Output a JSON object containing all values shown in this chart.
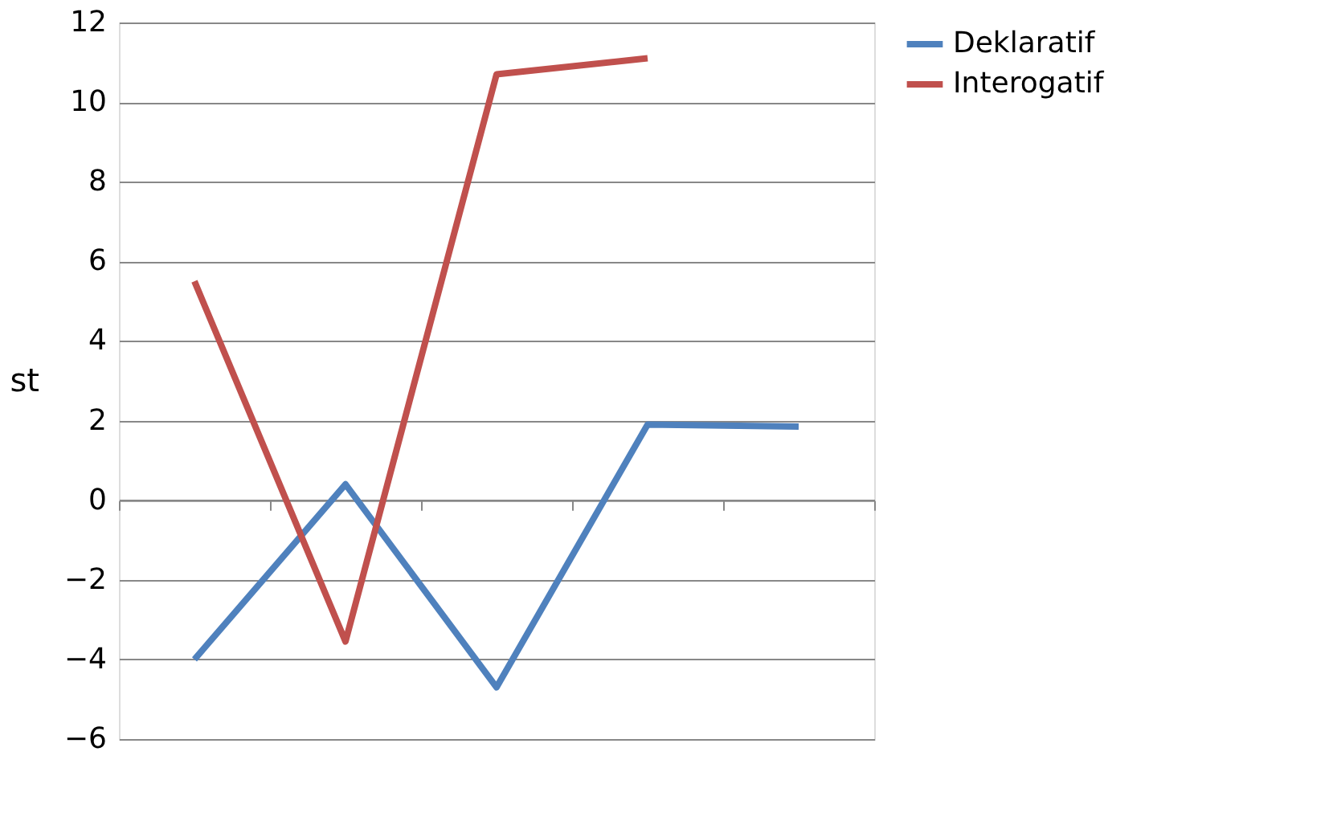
{
  "chart_data": {
    "type": "line",
    "ylabel": "st",
    "categories": [
      null,
      null,
      null,
      null,
      null
    ],
    "series": [
      {
        "name": "Deklaratif",
        "color": "#4f81bd",
        "values": [
          -4.0,
          0.4,
          -4.7,
          1.9,
          1.85
        ]
      },
      {
        "name": "Interogatif",
        "color": "#c0504d",
        "values": [
          5.5,
          -3.55,
          10.7,
          11.1,
          null
        ]
      }
    ],
    "ylim": [
      -6,
      12
    ],
    "yticks": [
      -6,
      -4,
      -2,
      0,
      2,
      4,
      6,
      8,
      10,
      12
    ],
    "grid": "y",
    "legend": "right",
    "tick_labels": "y",
    "marker": "none",
    "line_style": "solid"
  }
}
